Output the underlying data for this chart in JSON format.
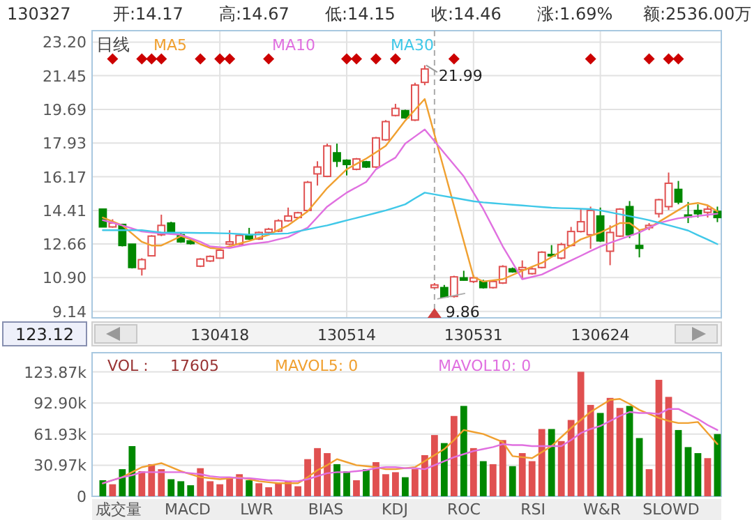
{
  "chart_data": [
    {
      "type": "candlestick",
      "ylim": [
        8.8,
        23.8
      ],
      "categories": [
        null,
        null,
        null,
        null,
        null,
        null,
        null,
        null,
        null,
        null,
        null,
        null,
        "130418",
        null,
        null,
        null,
        null,
        null,
        null,
        null,
        null,
        null,
        null,
        null,
        null,
        "130514",
        null,
        null,
        null,
        null,
        null,
        null,
        null,
        null,
        null,
        null,
        null,
        null,
        "130531",
        null,
        null,
        null,
        null,
        null,
        null,
        null,
        null,
        null,
        null,
        null,
        null,
        "130624",
        null,
        null,
        null,
        null,
        null,
        null,
        null,
        null,
        null,
        null,
        null,
        null
      ],
      "yticks": [
        {
          "value": 23.2,
          "label": "23.20"
        },
        21.45,
        19.69,
        17.93,
        16.17,
        14.41,
        12.66,
        {
          "value": 10.9,
          "label": "10.90"
        },
        9.14
      ],
      "grid": true,
      "legend": "top left",
      "ohlc": [
        [
          14.48,
          14.48,
          13.55,
          13.55
        ],
        [
          13.55,
          13.95,
          13.51,
          13.75
        ],
        [
          13.68,
          13.68,
          12.53,
          12.58
        ],
        [
          12.65,
          12.65,
          11.38,
          11.43
        ],
        [
          11.36,
          11.92,
          11.01,
          11.84
        ],
        [
          12.04,
          13.12,
          12.04,
          13.07
        ],
        [
          13.14,
          14.19,
          13.07,
          13.63
        ],
        [
          13.75,
          13.82,
          13.14,
          13.21
        ],
        [
          13.14,
          13.21,
          12.72,
          12.77
        ],
        [
          12.82,
          12.97,
          12.63,
          12.68
        ],
        [
          11.5,
          11.92,
          11.45,
          11.87
        ],
        [
          11.77,
          12.06,
          11.72,
          12.01
        ],
        [
          11.92,
          12.38,
          11.89,
          12.33
        ],
        [
          12.65,
          13.38,
          12.6,
          12.77
        ],
        [
          12.65,
          13.16,
          12.6,
          13.11
        ],
        [
          13.14,
          13.5,
          12.87,
          12.92
        ],
        [
          12.92,
          13.31,
          12.87,
          13.26
        ],
        [
          13.26,
          13.5,
          13.21,
          13.43
        ],
        [
          13.33,
          13.95,
          13.28,
          13.87
        ],
        [
          13.87,
          14.56,
          13.82,
          14.12
        ],
        [
          14.04,
          14.34,
          13.99,
          14.29
        ],
        [
          14.41,
          15.95,
          14.36,
          15.88
        ],
        [
          16.32,
          16.98,
          15.71,
          16.68
        ],
        [
          16.19,
          17.9,
          16.15,
          17.78
        ],
        [
          17.42,
          17.9,
          16.68,
          16.98
        ],
        [
          17.03,
          17.08,
          16.24,
          16.81
        ],
        [
          16.56,
          17.15,
          16.51,
          17.1
        ],
        [
          16.95,
          17.0,
          16.63,
          16.68
        ],
        [
          16.68,
          18.25,
          16.63,
          18.2
        ],
        [
          18.1,
          19.13,
          18.05,
          19.05
        ],
        [
          19.37,
          19.98,
          19.32,
          19.74
        ],
        [
          19.62,
          19.67,
          19.2,
          19.25
        ],
        [
          19.13,
          21.08,
          19.08,
          20.96
        ],
        [
          21.1,
          21.99,
          20.95,
          21.8
        ],
        [
          10.38,
          10.62,
          10.33,
          10.52
        ],
        [
          10.38,
          10.52,
          9.87,
          9.89
        ],
        [
          9.92,
          11.0,
          9.86,
          10.94
        ],
        [
          10.89,
          11.26,
          10.75,
          10.77
        ],
        [
          10.7,
          11.04,
          10.62,
          10.89
        ],
        [
          10.7,
          10.79,
          10.33,
          10.38
        ],
        [
          10.38,
          10.75,
          10.33,
          10.7
        ],
        [
          10.62,
          11.55,
          10.57,
          11.48
        ],
        [
          11.36,
          11.43,
          11.16,
          11.21
        ],
        [
          11.31,
          11.8,
          10.82,
          11.43
        ],
        [
          11.11,
          11.43,
          11.06,
          11.36
        ],
        [
          11.43,
          12.28,
          11.38,
          12.23
        ],
        [
          12.11,
          12.6,
          11.99,
          12.04
        ],
        [
          11.92,
          12.72,
          11.85,
          12.63
        ],
        [
          12.58,
          13.55,
          12.53,
          13.31
        ],
        [
          13.31,
          14.48,
          13.26,
          13.82
        ],
        [
          13.14,
          14.61,
          12.41,
          14.41
        ],
        [
          14.12,
          14.56,
          12.77,
          12.82
        ],
        [
          12.28,
          13.63,
          11.55,
          13.26
        ],
        [
          13.07,
          14.53,
          13.02,
          14.48
        ],
        [
          14.61,
          14.9,
          12.97,
          13.14
        ],
        [
          12.58,
          13.38,
          11.96,
          12.43
        ],
        [
          13.51,
          13.75,
          13.38,
          13.63
        ],
        [
          14.24,
          15.02,
          14.04,
          14.97
        ],
        [
          14.61,
          16.39,
          14.43,
          15.83
        ],
        [
          15.51,
          15.95,
          14.73,
          14.85
        ],
        [
          14.17,
          14.85,
          13.75,
          14.07
        ],
        [
          14.41,
          14.73,
          14.04,
          14.24
        ],
        [
          14.31,
          14.65,
          14.04,
          14.48
        ],
        [
          14.36,
          14.61,
          13.8,
          14.04
        ]
      ],
      "colors": [
        "#008800",
        "#e05050",
        "#008800",
        "#008800",
        "#e05050",
        "#e05050",
        "#e05050",
        "#008800",
        "#008800",
        "#008800",
        "#e05050",
        "#e05050",
        "#e05050",
        "#e05050",
        "#e05050",
        "#008800",
        "#e05050",
        "#e05050",
        "#e05050",
        "#e05050",
        "#e05050",
        "#e05050",
        "#e05050",
        "#e05050",
        "#008800",
        "#008800",
        "#e05050",
        "#008800",
        "#e05050",
        "#e05050",
        "#e05050",
        "#008800",
        "#e05050",
        "#e05050",
        "#e05050",
        "#008800",
        "#e05050",
        "#008800",
        "#e05050",
        "#008800",
        "#e05050",
        "#e05050",
        "#008800",
        "#e05050",
        "#e05050",
        "#e05050",
        "#008800",
        "#e05050",
        "#e05050",
        "#e05050",
        "#e05050",
        "#008800",
        "#e05050",
        "#e05050",
        "#008800",
        "#008800",
        "#e05050",
        "#e05050",
        "#e05050",
        "#008800",
        "#008800",
        "#008800",
        "#e05050",
        "#008800"
      ],
      "series": [
        {
          "name": "MA5",
          "type": "line",
          "color": "#f0a030",
          "values": [
            14.04,
            13.84,
            13.63,
            13.2,
            12.77,
            12.58,
            12.58,
            12.82,
            13.07,
            12.9,
            12.65,
            12.45,
            12.41,
            12.53,
            12.68,
            12.82,
            12.98,
            13.14,
            13.39,
            13.63,
            14.0,
            14.36,
            14.97,
            15.58,
            16.07,
            16.56,
            16.84,
            17.12,
            17.45,
            17.78,
            18.44,
            19.1,
            19.67,
            20.23,
            18.37,
            16.51,
            14.65,
            12.8,
            10.94,
            10.7,
            10.76,
            10.82,
            11.04,
            11.26,
            11.47,
            11.67,
            11.98,
            12.28,
            12.59,
            12.9,
            13.08,
            13.26,
            13.5,
            13.75,
            13.75,
            13.38,
            13.5,
            13.81,
            14.12,
            14.43,
            14.73,
            14.8,
            14.68,
            14.36
          ]
        },
        {
          "name": "MA10",
          "type": "line",
          "color": "#e070e0",
          "values": [
            13.9,
            13.77,
            13.63,
            13.47,
            13.31,
            13.26,
            13.21,
            13.18,
            13.14,
            12.96,
            12.77,
            12.53,
            12.49,
            12.45,
            12.55,
            12.65,
            12.71,
            12.77,
            12.9,
            13.02,
            13.27,
            13.51,
            14.06,
            14.61,
            14.98,
            15.34,
            15.62,
            15.9,
            16.56,
            16.87,
            17.17,
            17.9,
            18.27,
            18.64,
            18.03,
            17.41,
            16.8,
            16.19,
            15.34,
            14.48,
            13.51,
            12.53,
            11.68,
            10.82,
            10.94,
            11.06,
            11.31,
            11.55,
            11.8,
            12.04,
            12.29,
            12.53,
            12.72,
            12.9,
            13.08,
            13.26,
            13.51,
            13.75,
            13.88,
            14.0,
            14.06,
            14.12,
            14.18,
            14.24
          ]
        },
        {
          "name": "MA30",
          "type": "line",
          "color": "#40c8e8",
          "values": [
            13.38,
            13.38,
            13.38,
            13.38,
            13.38,
            13.32,
            13.26,
            13.25,
            13.25,
            13.24,
            13.23,
            13.23,
            13.22,
            13.21,
            13.18,
            13.14,
            13.16,
            13.18,
            13.19,
            13.21,
            13.32,
            13.42,
            13.53,
            13.63,
            13.76,
            13.89,
            14.02,
            14.15,
            14.28,
            14.41,
            14.57,
            14.73,
            15.04,
            15.34,
            15.25,
            15.16,
            15.07,
            14.98,
            14.89,
            14.83,
            14.79,
            14.75,
            14.71,
            14.67,
            14.63,
            14.59,
            14.55,
            14.53,
            14.52,
            14.5,
            14.48,
            14.41,
            14.31,
            14.21,
            14.11,
            14.01,
            13.9,
            13.77,
            13.64,
            13.5,
            13.36,
            13.12,
            12.89,
            12.65
          ]
        },
        {
          "type": "scatter",
          "marker": "diamond",
          "color": "#cc0000",
          "values": [
            null,
            22.33,
            null,
            null,
            22.33,
            22.33,
            22.33,
            null,
            null,
            null,
            22.33,
            null,
            22.33,
            22.33,
            null,
            null,
            null,
            22.33,
            null,
            null,
            null,
            null,
            null,
            null,
            null,
            22.33,
            22.33,
            null,
            22.33,
            null,
            22.33,
            null,
            null,
            null,
            null,
            null,
            22.33,
            null,
            null,
            null,
            null,
            null,
            null,
            null,
            null,
            null,
            null,
            null,
            null,
            null,
            22.33,
            null,
            null,
            null,
            null,
            null,
            22.33,
            null,
            22.33,
            22.33,
            null,
            null,
            null,
            null
          ]
        }
      ],
      "annotations": [
        "130327",
        "开:14.17",
        "高:14.67",
        "低:14.15",
        "收:14.46",
        "涨:1.69%",
        "额:2536.00万",
        "日线",
        "123.12",
        {
          "text": "21.99",
          "y": 21.99
        },
        {
          "text": "9.86",
          "y": 9.86
        }
      ]
    },
    {
      "type": "bar",
      "ylim": [
        0,
        143
      ],
      "grid": "y",
      "legend": "top left",
      "categories": [
        null,
        null,
        null,
        null,
        null,
        null,
        null,
        null,
        null,
        null,
        null,
        null,
        null,
        null,
        null,
        null,
        null,
        null,
        null,
        null,
        null,
        null,
        null,
        null,
        null,
        null,
        null,
        null,
        null,
        null,
        null,
        null,
        null,
        null,
        null,
        null,
        null,
        null,
        null,
        null,
        null,
        null,
        null,
        null,
        null,
        null,
        null,
        null,
        null,
        null,
        null,
        null,
        null,
        null,
        null,
        null,
        null,
        null,
        null,
        null,
        null,
        null,
        null,
        null
      ],
      "yticks": [
        0,
        {
          "value": 30.97,
          "label": "30.97k"
        },
        {
          "value": 61.93,
          "label": "61.93k"
        },
        {
          "value": 92.9,
          "label": "92.90k"
        },
        {
          "value": 123.87,
          "label": "123.87k"
        }
      ],
      "values": [
        16,
        12,
        27,
        50,
        25,
        32,
        27,
        17,
        15,
        11,
        28,
        15,
        12,
        19,
        22,
        16,
        13,
        9,
        13,
        15,
        10,
        37,
        48,
        43,
        32,
        25,
        16,
        27,
        34,
        22,
        24,
        19,
        27,
        41,
        61,
        53,
        80,
        90,
        48,
        35,
        32,
        56,
        30,
        43,
        35,
        67,
        67,
        55,
        76,
        124,
        91,
        83,
        98,
        88,
        90,
        58,
        27,
        116,
        99,
        66,
        49,
        43,
        38,
        62
      ],
      "colors": [
        "#008800",
        "#e05050",
        "#008800",
        "#008800",
        "#e05050",
        "#e05050",
        "#e05050",
        "#008800",
        "#008800",
        "#008800",
        "#e05050",
        "#e05050",
        "#e05050",
        "#e05050",
        "#e05050",
        "#008800",
        "#e05050",
        "#e05050",
        "#e05050",
        "#e05050",
        "#e05050",
        "#e05050",
        "#e05050",
        "#e05050",
        "#008800",
        "#008800",
        "#e05050",
        "#008800",
        "#e05050",
        "#e05050",
        "#e05050",
        "#008800",
        "#e05050",
        "#e05050",
        "#e05050",
        "#008800",
        "#e05050",
        "#008800",
        "#e05050",
        "#008800",
        "#e05050",
        "#e05050",
        "#008800",
        "#e05050",
        "#e05050",
        "#e05050",
        "#008800",
        "#e05050",
        "#e05050",
        "#e05050",
        "#e05050",
        "#008800",
        "#e05050",
        "#e05050",
        "#008800",
        "#008800",
        "#e05050",
        "#e05050",
        "#e05050",
        "#008800",
        "#008800",
        "#008800",
        "#e05050",
        "#008800"
      ],
      "series": [
        {
          "name": "MAVOL5:  0",
          "type": "line",
          "color": "#f0a030",
          "values": [
            13,
            16,
            19,
            24,
            29,
            31,
            33,
            29,
            25,
            22,
            19,
            18,
            17,
            18,
            19,
            17,
            15,
            14,
            13,
            13,
            13,
            19,
            26,
            31,
            37,
            34,
            31,
            30,
            29,
            27,
            27,
            28,
            29,
            35,
            41,
            47,
            56,
            66,
            64,
            62,
            58,
            54,
            40,
            39,
            38,
            44,
            50,
            59,
            68,
            76,
            84,
            90,
            96,
            97,
            92,
            86,
            82,
            78,
            75,
            73,
            73,
            74,
            63,
            52
          ]
        },
        {
          "name": "MAVOL10:  0",
          "type": "line",
          "color": "#e070e0",
          "values": [
            13,
            16,
            19,
            21,
            24,
            24,
            24,
            24,
            24,
            23,
            22,
            20,
            19,
            19,
            18,
            18,
            17,
            16,
            16,
            15,
            15,
            17,
            20,
            23,
            24,
            24,
            25,
            26,
            28,
            29,
            29,
            28,
            28,
            27,
            31,
            35,
            39,
            42,
            45,
            47,
            49,
            52,
            51,
            51,
            50,
            50,
            50,
            50,
            56,
            63,
            67,
            70,
            75,
            80,
            84,
            83,
            83,
            82,
            87,
            87,
            82,
            77,
            71,
            66
          ]
        }
      ],
      "annotations": [
        "VOL :",
        "17605",
        "成交量",
        "MACD",
        "LWR",
        "BIAS",
        "KDJ",
        "ROC",
        "RSI",
        "W&R",
        "SLOWD"
      ]
    }
  ]
}
